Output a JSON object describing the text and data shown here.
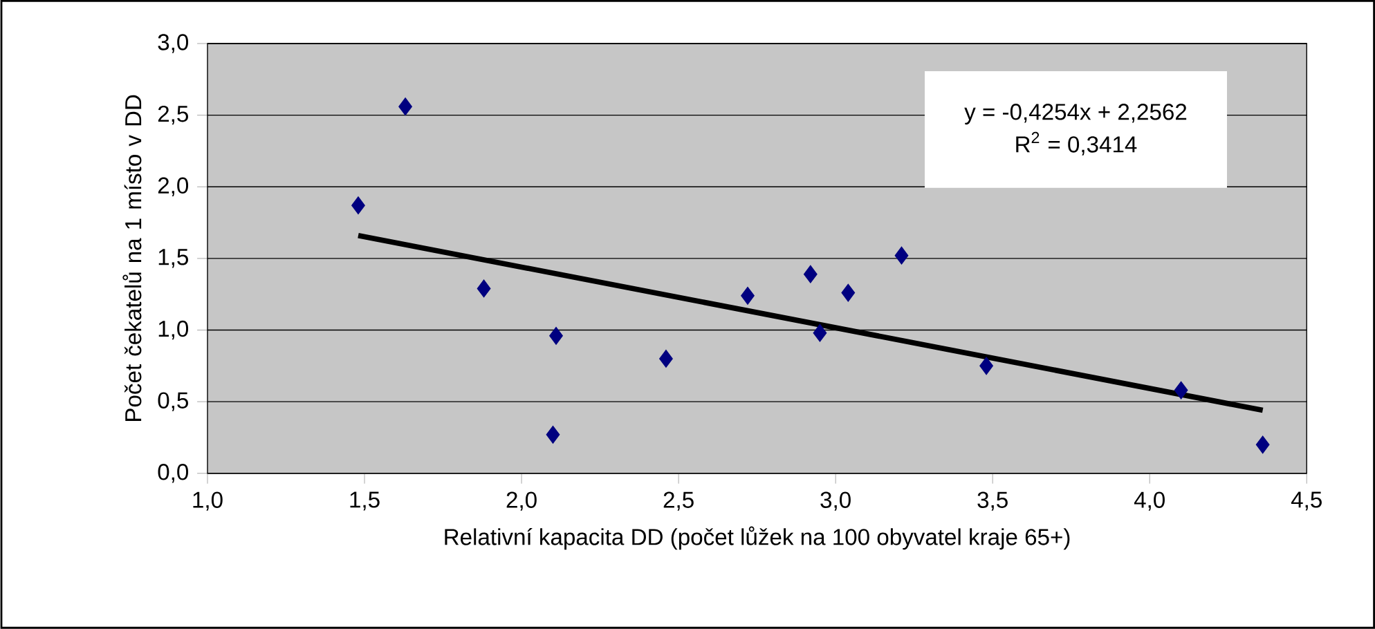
{
  "chart_data": {
    "type": "scatter",
    "xlabel": "Relativní kapacita DD (počet lůžek na 100 obyvatel kraje  65+)",
    "ylabel": "Počet čekatelů na 1 místo v DD",
    "grid": "y",
    "xlim": [
      1.0,
      4.5
    ],
    "xticks": [
      {
        "value": 1.0,
        "label": "1,0"
      },
      {
        "value": 1.5,
        "label": "1,5"
      },
      {
        "value": 2.0,
        "label": "2,0"
      },
      {
        "value": 2.5,
        "label": "2,5"
      },
      {
        "value": 3.0,
        "label": "3,0"
      },
      {
        "value": 3.5,
        "label": "3,5"
      },
      {
        "value": 4.0,
        "label": "4,0"
      },
      {
        "value": 4.5,
        "label": "4,5"
      }
    ],
    "ylim": [
      0.0,
      3.0
    ],
    "yticks": [
      {
        "value": 0.0,
        "label": "0,0"
      },
      {
        "value": 0.5,
        "label": "0,5"
      },
      {
        "value": 1.0,
        "label": "1,0"
      },
      {
        "value": 1.5,
        "label": "1,5"
      },
      {
        "value": 2.0,
        "label": "2,0"
      },
      {
        "value": 2.5,
        "label": "2,5"
      },
      {
        "value": 3.0,
        "label": "3,0"
      }
    ],
    "series": [
      {
        "color": "#000080",
        "marker": "diamond",
        "x": [
          1.48,
          1.63,
          1.88,
          2.11,
          2.1,
          2.46,
          2.72,
          2.92,
          2.95,
          3.04,
          3.21,
          3.48,
          4.1,
          4.36
        ],
        "values": [
          1.87,
          2.56,
          1.29,
          0.96,
          0.27,
          0.8,
          1.24,
          1.39,
          0.98,
          1.26,
          1.52,
          0.75,
          0.58,
          0.2
        ]
      },
      {
        "type": "line",
        "color": "#000000",
        "x": [
          1.48,
          4.36
        ],
        "values": [
          1.66,
          0.44
        ]
      }
    ],
    "annotations": [
      "y = -0,4254x + 2,2562",
      "R$^{2}$ = 0,3414"
    ]
  }
}
